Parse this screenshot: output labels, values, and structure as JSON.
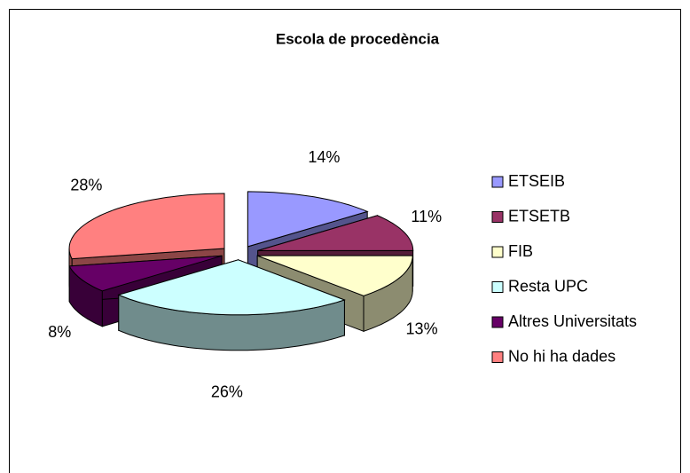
{
  "chart_data": {
    "type": "pie",
    "title": "Escola de procedència",
    "categories": [
      "ETSEIB",
      "ETSETB",
      "FIB",
      "Resta UPC",
      "Altres Universitats",
      "No hi ha dades"
    ],
    "values": [
      14,
      11,
      13,
      26,
      8,
      28
    ],
    "value_labels": [
      "14%",
      "11%",
      "13%",
      "26%",
      "8%",
      "28%"
    ],
    "colors": [
      "#9999ff",
      "#993366",
      "#ffffcc",
      "#ccffff",
      "#660066",
      "#ff8080"
    ],
    "legend": "right"
  }
}
